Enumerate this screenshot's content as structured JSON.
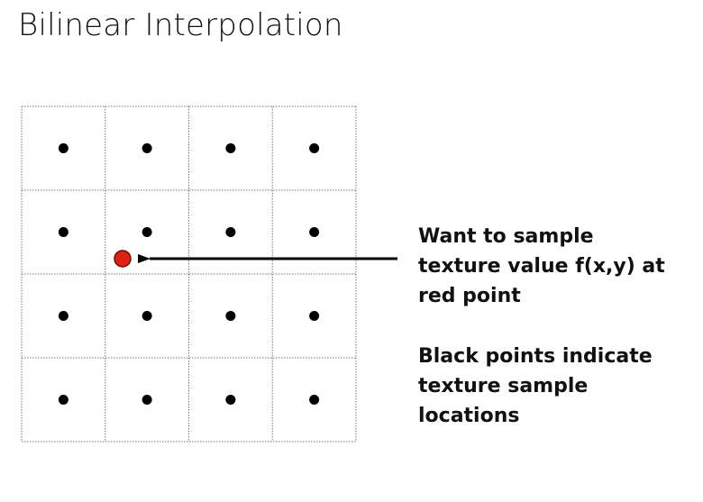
{
  "title": "Bilinear Interpolation",
  "grid": {
    "rows": 4,
    "cols": 4,
    "line_color": "#777777",
    "sample_color": "#000000"
  },
  "query_point": {
    "color": "#dd2211",
    "outline": "#6a1208"
  },
  "annotations": [
    {
      "lines": [
        "Want to sample",
        "texture value f(x,y) at",
        "red point"
      ]
    },
    {
      "lines": [
        "Black points indicate",
        "texture sample",
        "locations"
      ]
    }
  ]
}
